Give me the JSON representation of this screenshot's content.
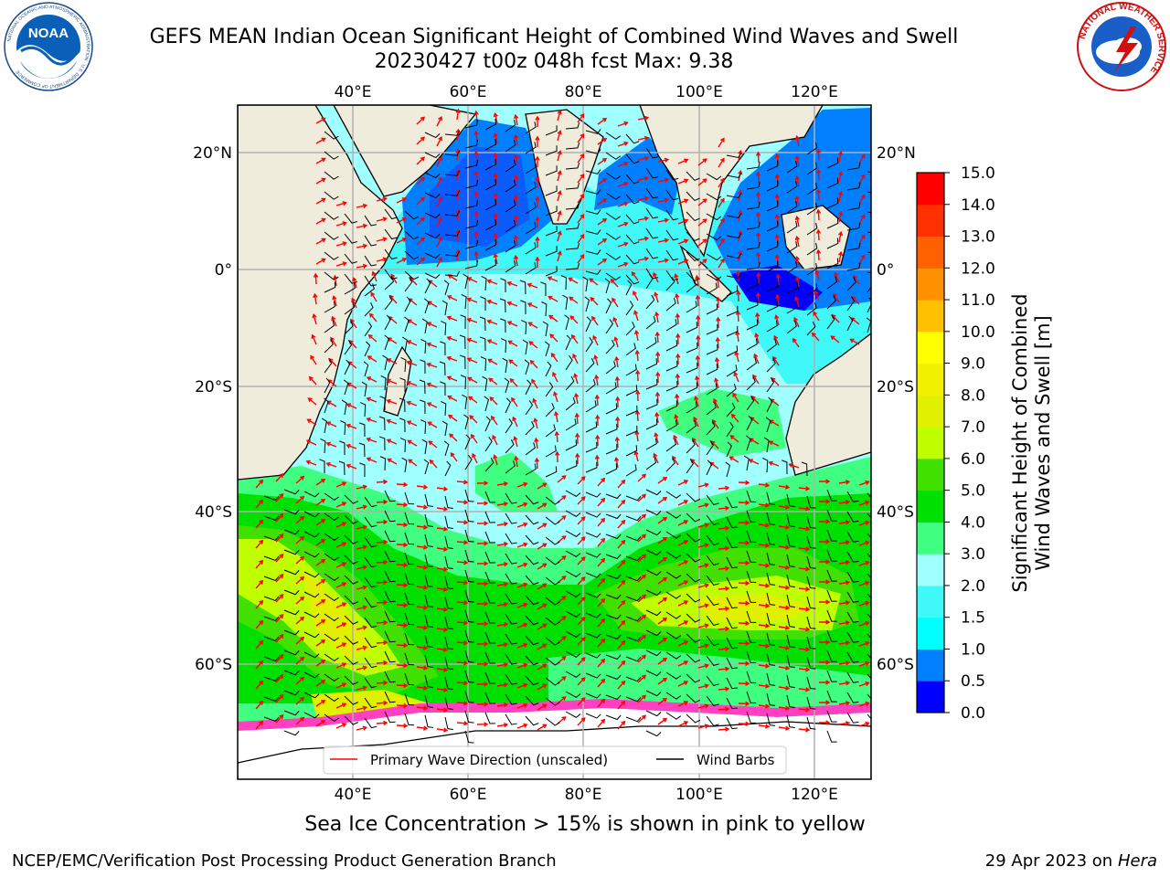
{
  "header": {
    "title_line1": "GEFS MEAN Indian Ocean Significant Height of Combined Wind Waves and Swell",
    "title_line2": "20230427 t00z 048h fcst   Max: 9.38"
  },
  "logos": {
    "left": "noaa-logo",
    "left_text": "NOAA",
    "left_ring_text": "NATIONAL OCEANIC AND ATMOSPHERIC ADMINISTRATION · U.S. DEPARTMENT OF COMMERCE",
    "right": "national-weather-service-logo",
    "right_ring_text": "NATIONAL WEATHER SERVICE"
  },
  "map": {
    "lon_ticks_top": [
      "40°E",
      "60°E",
      "80°E",
      "100°E",
      "120°E"
    ],
    "lon_ticks_bottom": [
      "40°E",
      "60°E",
      "80°E",
      "100°E",
      "120°E"
    ],
    "lat_ticks_left": [
      "20°N",
      "0°",
      "20°S",
      "40°S",
      "60°S"
    ],
    "lat_ticks_right": [
      "20°N",
      "0°",
      "20°S",
      "40°S",
      "60°S"
    ],
    "land_color": "#efecdc",
    "grid": true
  },
  "legend": {
    "wave_direction": "Primary Wave Direction (unscaled)",
    "wind_barbs": "Wind Barbs",
    "wave_color": "#ff0000",
    "barb_color": "#000000"
  },
  "colorbar": {
    "title_line1": "Significant Height of Combined",
    "title_line2": "Wind Waves and Swell [m]",
    "tick_labels": [
      "0.0",
      "0.5",
      "1.0",
      "1.5",
      "2.0",
      "3.0",
      "4.0",
      "5.0",
      "6.0",
      "7.0",
      "8.0",
      "9.0",
      "10.0",
      "11.0",
      "12.0",
      "13.0",
      "14.0",
      "15.0"
    ],
    "colors": [
      "#0000ff",
      "#0080ff",
      "#00ffff",
      "#40f8f8",
      "#a0ffff",
      "#40ff80",
      "#00e000",
      "#40e000",
      "#c0ff00",
      "#e0f000",
      "#f0f000",
      "#ffff00",
      "#ffc000",
      "#ff9000",
      "#ff6000",
      "#ff3000",
      "#ff0000"
    ]
  },
  "notes": {
    "ice": "Sea Ice Concentration > 15% is shown in pink to yellow"
  },
  "footer": {
    "left": "NCEP/EMC/Verification Post Processing Product Generation Branch",
    "right_prefix": "29 Apr 2023 on",
    "right_host": "Hera"
  }
}
